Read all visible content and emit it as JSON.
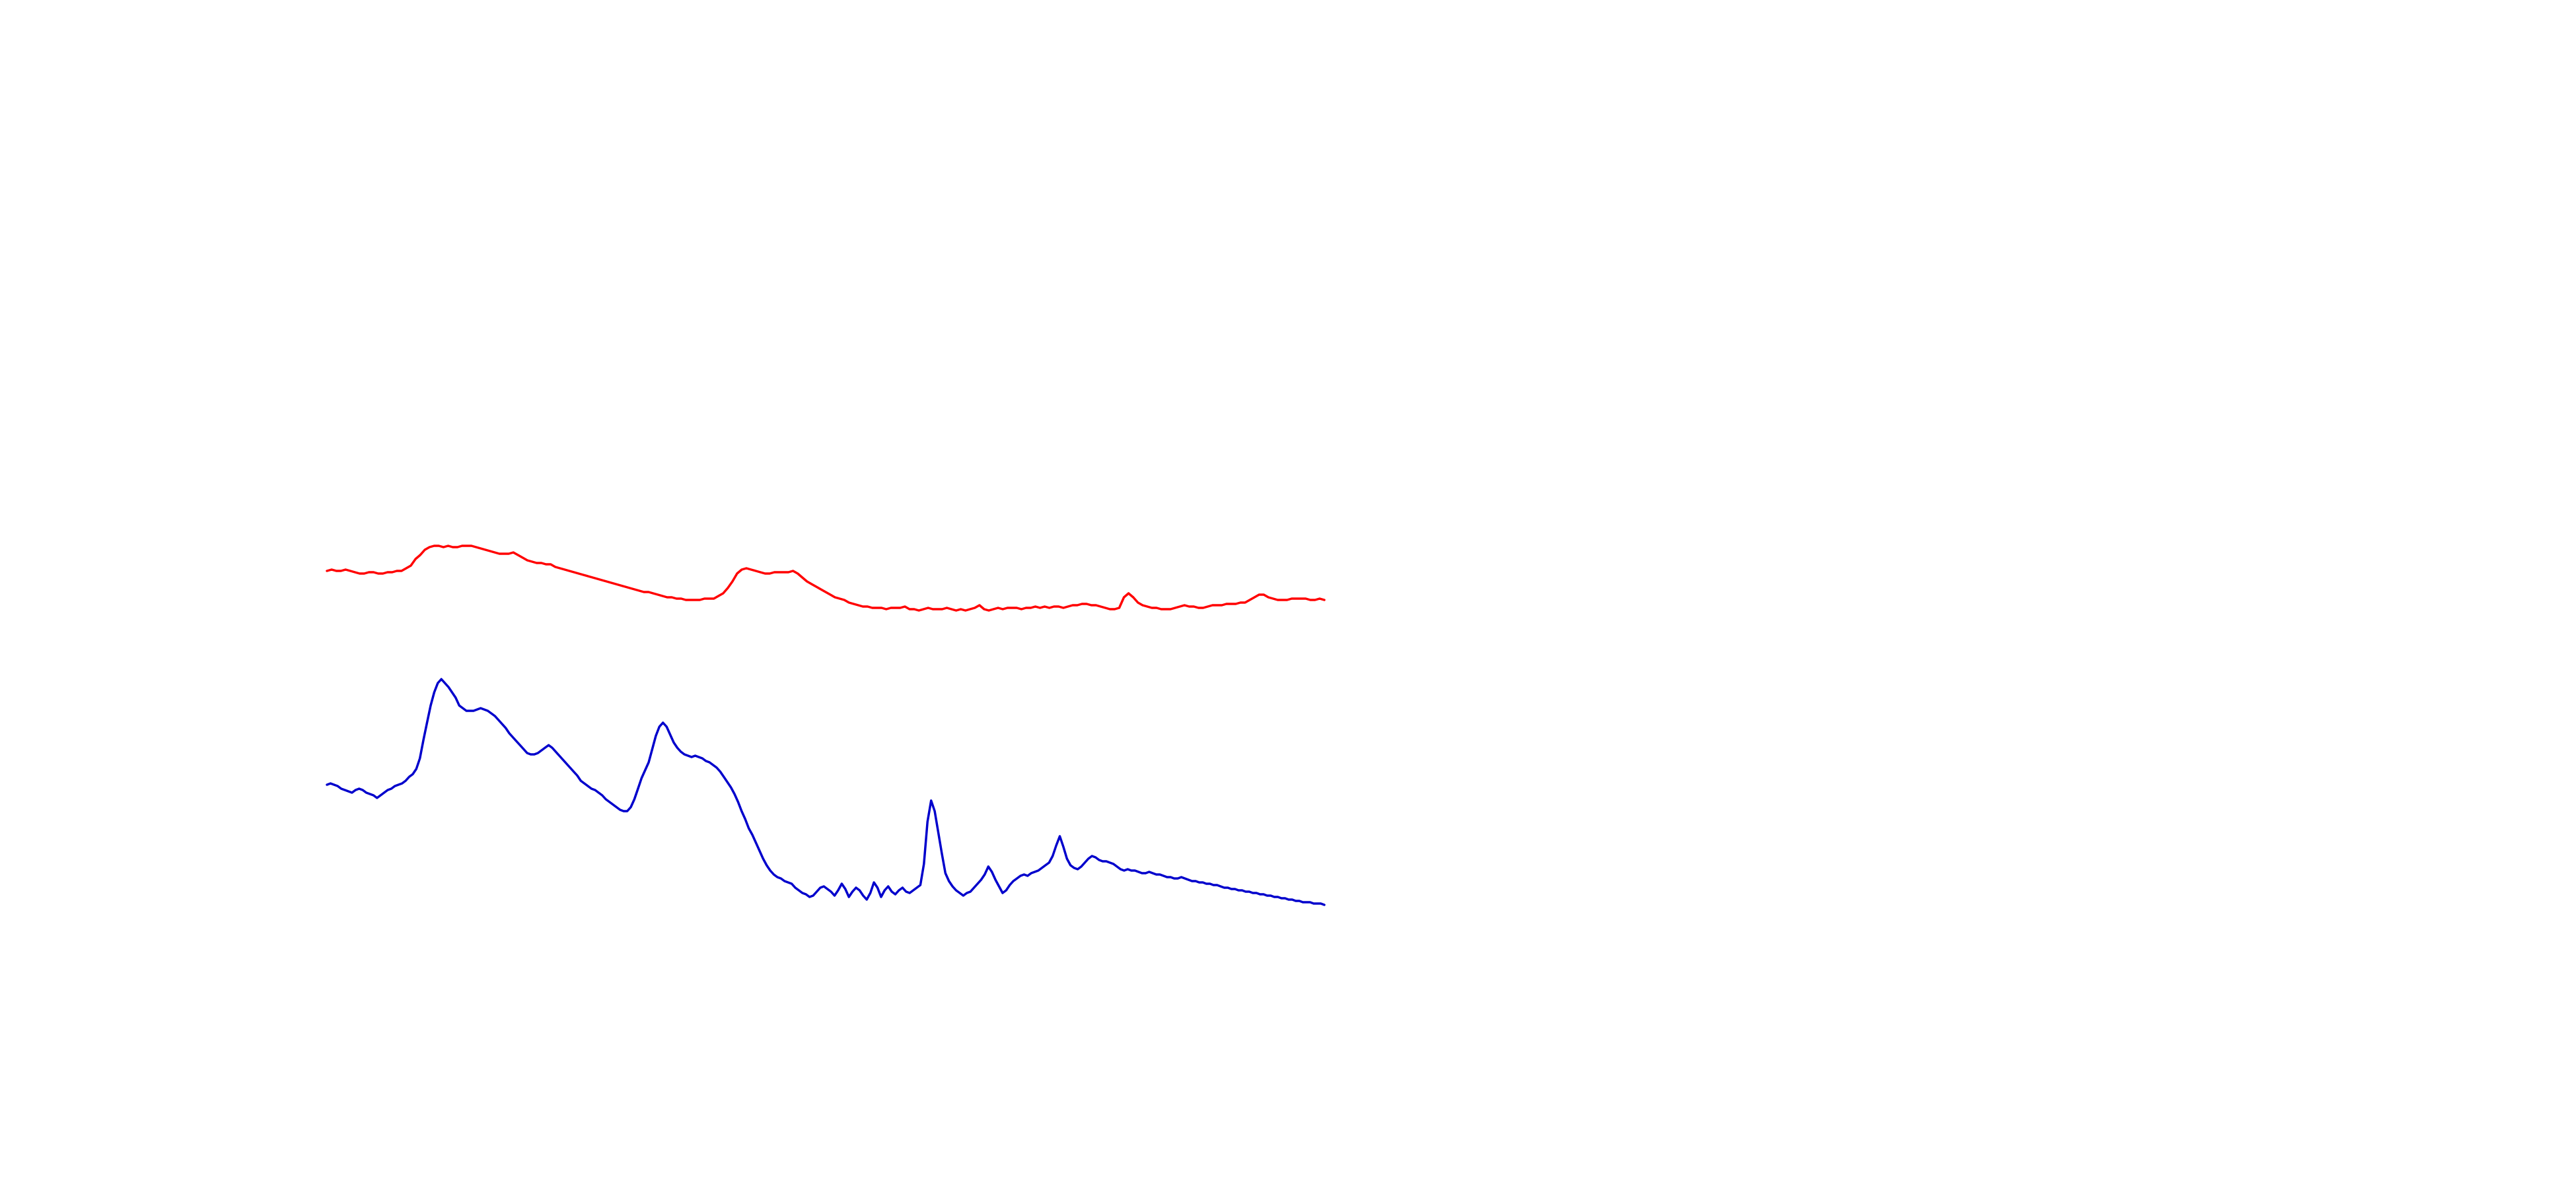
{
  "chart_data": {
    "type": "line",
    "title": "",
    "xlabel": "",
    "ylabel": "",
    "grid": false,
    "legend": "none",
    "axes_visible": false,
    "xlim": [
      0,
      300
    ],
    "ylim": [
      -2.3,
      0.85
    ],
    "series": [
      {
        "color": "#ff0000",
        "values": [
          0.3,
          0.31,
          0.3,
          0.3,
          0.31,
          0.3,
          0.29,
          0.28,
          0.28,
          0.29,
          0.29,
          0.28,
          0.28,
          0.29,
          0.29,
          0.3,
          0.3,
          0.32,
          0.34,
          0.39,
          0.42,
          0.46,
          0.48,
          0.49,
          0.49,
          0.48,
          0.49,
          0.48,
          0.48,
          0.49,
          0.49,
          0.49,
          0.48,
          0.47,
          0.46,
          0.45,
          0.44,
          0.43,
          0.43,
          0.43,
          0.44,
          0.42,
          0.4,
          0.38,
          0.37,
          0.36,
          0.36,
          0.35,
          0.35,
          0.33,
          0.32,
          0.31,
          0.3,
          0.29,
          0.28,
          0.27,
          0.26,
          0.25,
          0.24,
          0.23,
          0.22,
          0.21,
          0.2,
          0.19,
          0.18,
          0.17,
          0.16,
          0.15,
          0.14,
          0.14,
          0.13,
          0.12,
          0.11,
          0.1,
          0.1,
          0.09,
          0.09,
          0.08,
          0.08,
          0.08,
          0.08,
          0.09,
          0.09,
          0.09,
          0.11,
          0.13,
          0.17,
          0.22,
          0.28,
          0.31,
          0.32,
          0.31,
          0.3,
          0.29,
          0.28,
          0.28,
          0.29,
          0.29,
          0.29,
          0.29,
          0.3,
          0.28,
          0.25,
          0.22,
          0.2,
          0.18,
          0.16,
          0.14,
          0.12,
          0.1,
          0.09,
          0.08,
          0.06,
          0.05,
          0.04,
          0.03,
          0.03,
          0.02,
          0.02,
          0.02,
          0.01,
          0.02,
          0.02,
          0.02,
          0.03,
          0.01,
          0.01,
          0.0,
          0.01,
          0.02,
          0.01,
          0.01,
          0.01,
          0.02,
          0.01,
          0.0,
          0.01,
          0.0,
          0.01,
          0.02,
          0.04,
          0.01,
          0.0,
          0.01,
          0.02,
          0.01,
          0.02,
          0.02,
          0.02,
          0.01,
          0.02,
          0.02,
          0.03,
          0.02,
          0.03,
          0.02,
          0.03,
          0.03,
          0.02,
          0.03,
          0.04,
          0.04,
          0.05,
          0.05,
          0.04,
          0.04,
          0.03,
          0.02,
          0.01,
          0.01,
          0.02,
          0.1,
          0.13,
          0.1,
          0.06,
          0.04,
          0.03,
          0.02,
          0.02,
          0.01,
          0.01,
          0.01,
          0.02,
          0.03,
          0.04,
          0.03,
          0.03,
          0.02,
          0.02,
          0.03,
          0.04,
          0.04,
          0.04,
          0.05,
          0.05,
          0.05,
          0.06,
          0.06,
          0.08,
          0.1,
          0.12,
          0.12,
          0.1,
          0.09,
          0.08,
          0.08,
          0.08,
          0.09,
          0.09,
          0.09,
          0.09,
          0.08,
          0.08,
          0.09,
          0.08
        ]
      },
      {
        "color": "#0000cc",
        "values": [
          -1.32,
          -1.31,
          -1.32,
          -1.33,
          -1.35,
          -1.36,
          -1.37,
          -1.38,
          -1.36,
          -1.35,
          -1.36,
          -1.38,
          -1.39,
          -1.4,
          -1.42,
          -1.4,
          -1.38,
          -1.36,
          -1.35,
          -1.33,
          -1.32,
          -1.31,
          -1.29,
          -1.26,
          -1.24,
          -1.2,
          -1.12,
          -0.98,
          -0.85,
          -0.72,
          -0.62,
          -0.55,
          -0.52,
          -0.55,
          -0.58,
          -0.62,
          -0.66,
          -0.72,
          -0.74,
          -0.76,
          -0.76,
          -0.76,
          -0.75,
          -0.74,
          -0.75,
          -0.76,
          -0.78,
          -0.8,
          -0.83,
          -0.86,
          -0.89,
          -0.93,
          -0.96,
          -0.99,
          -1.02,
          -1.05,
          -1.08,
          -1.09,
          -1.09,
          -1.08,
          -1.06,
          -1.04,
          -1.02,
          -1.04,
          -1.07,
          -1.1,
          -1.13,
          -1.16,
          -1.19,
          -1.22,
          -1.25,
          -1.29,
          -1.31,
          -1.33,
          -1.35,
          -1.36,
          -1.38,
          -1.4,
          -1.43,
          -1.45,
          -1.47,
          -1.49,
          -1.51,
          -1.52,
          -1.52,
          -1.49,
          -1.43,
          -1.35,
          -1.27,
          -1.21,
          -1.15,
          -1.05,
          -0.95,
          -0.88,
          -0.85,
          -0.88,
          -0.94,
          -1.0,
          -1.04,
          -1.07,
          -1.09,
          -1.1,
          -1.11,
          -1.1,
          -1.11,
          -1.12,
          -1.14,
          -1.15,
          -1.17,
          -1.19,
          -1.22,
          -1.26,
          -1.3,
          -1.34,
          -1.39,
          -1.45,
          -1.52,
          -1.58,
          -1.65,
          -1.7,
          -1.76,
          -1.82,
          -1.88,
          -1.93,
          -1.97,
          -2.0,
          -2.02,
          -2.03,
          -2.05,
          -2.06,
          -2.07,
          -2.1,
          -2.12,
          -2.14,
          -2.15,
          -2.17,
          -2.16,
          -2.13,
          -2.1,
          -2.09,
          -2.11,
          -2.13,
          -2.16,
          -2.12,
          -2.07,
          -2.11,
          -2.17,
          -2.13,
          -2.1,
          -2.12,
          -2.16,
          -2.19,
          -2.14,
          -2.06,
          -2.1,
          -2.17,
          -2.12,
          -2.09,
          -2.13,
          -2.15,
          -2.12,
          -2.1,
          -2.13,
          -2.14,
          -2.12,
          -2.1,
          -2.08,
          -1.92,
          -1.6,
          -1.44,
          -1.52,
          -1.68,
          -1.84,
          -1.99,
          -2.05,
          -2.09,
          -2.12,
          -2.14,
          -2.16,
          -2.14,
          -2.13,
          -2.1,
          -2.07,
          -2.04,
          -2.0,
          -1.94,
          -1.98,
          -2.04,
          -2.09,
          -2.14,
          -2.12,
          -2.08,
          -2.05,
          -2.03,
          -2.01,
          -2.0,
          -2.01,
          -1.99,
          -1.98,
          -1.97,
          -1.95,
          -1.93,
          -1.91,
          -1.86,
          -1.78,
          -1.71,
          -1.79,
          -1.88,
          -1.93,
          -1.95,
          -1.96,
          -1.94,
          -1.91,
          -1.88,
          -1.86,
          -1.87,
          -1.89,
          -1.9,
          -1.9,
          -1.91,
          -1.92,
          -1.94,
          -1.96,
          -1.97,
          -1.96,
          -1.97,
          -1.97,
          -1.98,
          -1.99,
          -1.99,
          -1.98,
          -1.99,
          -2.0,
          -2.0,
          -2.01,
          -2.02,
          -2.02,
          -2.03,
          -2.03,
          -2.02,
          -2.03,
          -2.04,
          -2.05,
          -2.05,
          -2.06,
          -2.06,
          -2.07,
          -2.07,
          -2.08,
          -2.08,
          -2.09,
          -2.1,
          -2.1,
          -2.11,
          -2.11,
          -2.12,
          -2.12,
          -2.13,
          -2.13,
          -2.14,
          -2.14,
          -2.15,
          -2.15,
          -2.16,
          -2.16,
          -2.17,
          -2.17,
          -2.18,
          -2.18,
          -2.19,
          -2.19,
          -2.2,
          -2.2,
          -2.21,
          -2.21,
          -2.21,
          -2.22,
          -2.22,
          -2.22,
          -2.23
        ]
      }
    ]
  }
}
